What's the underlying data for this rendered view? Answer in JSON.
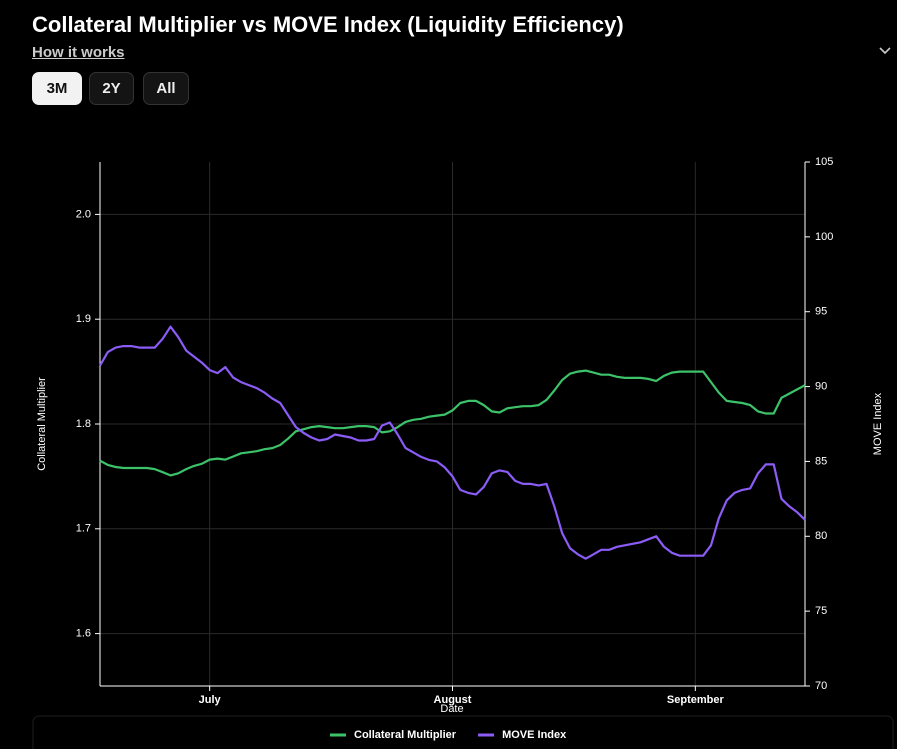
{
  "header": {
    "title": "Collateral Multiplier vs MOVE Index (Liquidity Efficiency)",
    "link": "How it works",
    "buttons": [
      "3M",
      "2Y",
      "All"
    ]
  },
  "chart_data": {
    "type": "line",
    "x_label": "Date",
    "y_label": "Collateral Multiplier",
    "y2_label": "MOVE Index",
    "categories": [
      null,
      null,
      null,
      null,
      null,
      null,
      null,
      null,
      null,
      null,
      null,
      null,
      null,
      null,
      "July",
      null,
      null,
      null,
      null,
      null,
      null,
      null,
      null,
      null,
      null,
      null,
      null,
      null,
      null,
      null,
      null,
      null,
      null,
      null,
      null,
      null,
      null,
      null,
      null,
      null,
      null,
      null,
      null,
      null,
      null,
      "August",
      null,
      null,
      null,
      null,
      null,
      null,
      null,
      null,
      null,
      null,
      null,
      null,
      null,
      null,
      null,
      null,
      null,
      null,
      null,
      null,
      null,
      null,
      null,
      null,
      null,
      null,
      null,
      null,
      null,
      null,
      "September",
      null,
      null,
      null,
      null,
      null,
      null,
      null,
      null,
      null,
      null,
      null,
      null,
      null,
      null
    ],
    "series": [
      {
        "name": "Collateral Multiplier",
        "color": "#3cc36a",
        "axis": "y",
        "values": [
          1.765,
          1.761,
          1.759,
          1.758,
          1.758,
          1.758,
          1.758,
          1.757,
          1.754,
          1.751,
          1.753,
          1.757,
          1.76,
          1.762,
          1.766,
          1.767,
          1.766,
          1.769,
          1.772,
          1.773,
          1.774,
          1.776,
          1.777,
          1.78,
          1.786,
          1.793,
          1.795,
          1.797,
          1.798,
          1.797,
          1.796,
          1.796,
          1.797,
          1.798,
          1.798,
          1.797,
          1.792,
          1.793,
          1.797,
          1.802,
          1.804,
          1.805,
          1.807,
          1.808,
          1.809,
          1.813,
          1.82,
          1.822,
          1.822,
          1.818,
          1.812,
          1.811,
          1.815,
          1.816,
          1.817,
          1.817,
          1.818,
          1.823,
          1.832,
          1.842,
          1.848,
          1.85,
          1.851,
          1.849,
          1.847,
          1.847,
          1.845,
          1.844,
          1.844,
          1.844,
          1.843,
          1.841,
          1.846,
          1.849,
          1.85,
          1.85,
          1.85,
          1.85,
          1.84,
          1.83,
          1.822,
          1.821,
          1.82,
          1.818,
          1.812,
          1.81,
          1.81,
          1.825,
          1.829,
          1.833,
          1.837
        ]
      },
      {
        "name": "MOVE Index",
        "color": "#8b5cf6",
        "axis": "y2",
        "values": [
          91.4,
          92.3,
          92.6,
          92.7,
          92.7,
          92.6,
          92.6,
          92.6,
          93.2,
          94.0,
          93.3,
          92.4,
          92.0,
          91.6,
          91.1,
          90.9,
          91.3,
          90.6,
          90.3,
          90.1,
          89.9,
          89.6,
          89.2,
          88.9,
          88.1,
          87.3,
          86.9,
          86.6,
          86.4,
          86.5,
          86.8,
          86.7,
          86.6,
          86.4,
          86.4,
          86.5,
          87.4,
          87.6,
          86.8,
          85.9,
          85.6,
          85.3,
          85.1,
          85.0,
          84.6,
          84.0,
          83.1,
          82.9,
          82.8,
          83.3,
          84.2,
          84.4,
          84.3,
          83.7,
          83.5,
          83.5,
          83.4,
          83.5,
          82.0,
          80.2,
          79.2,
          78.8,
          78.5,
          78.8,
          79.1,
          79.1,
          79.3,
          79.4,
          79.5,
          79.6,
          79.8,
          80.0,
          79.3,
          78.9,
          78.7,
          78.7,
          78.7,
          78.7,
          79.4,
          81.2,
          82.4,
          82.9,
          83.1,
          83.2,
          84.2,
          84.8,
          84.8,
          82.5,
          82.0,
          81.6,
          81.1
        ]
      }
    ],
    "ylim": [
      1.55,
      2.05
    ],
    "yticks": [
      1.6,
      1.7,
      1.8,
      1.9,
      {
        "value": 2,
        "label": "2.0"
      }
    ],
    "y2lim": [
      70,
      105
    ],
    "y2ticks": [
      70,
      75,
      80,
      85,
      90,
      95,
      100,
      105
    ],
    "grid": true,
    "legend": "bottom"
  }
}
